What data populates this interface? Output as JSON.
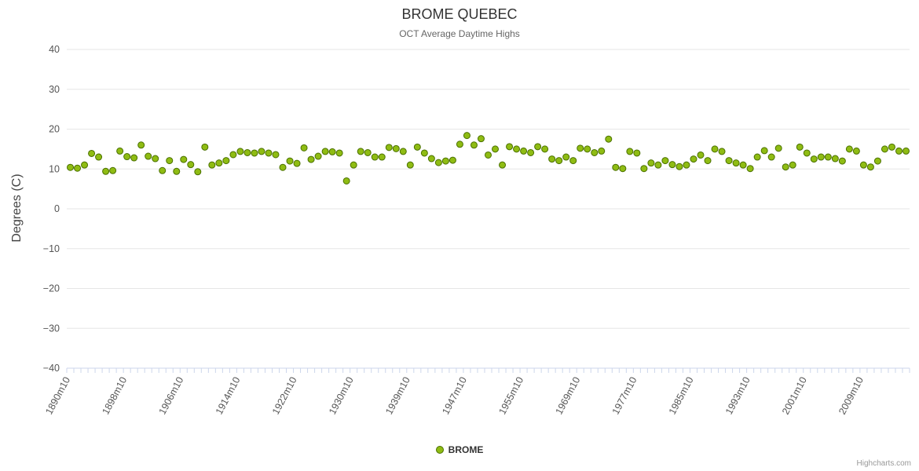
{
  "title": "BROME QUEBEC",
  "subtitle": "OCT Average Daytime Highs",
  "y_axis_title": "Degrees (C)",
  "legend": {
    "label": "BROME"
  },
  "credits": "Highcharts.com",
  "colors": {
    "marker_fill": "#8fbc13",
    "marker_stroke": "#4a7000",
    "grid": "#e6e6e6",
    "axis_line": "#ccd6eb",
    "tick": "#ccd6eb",
    "y_label": "#555555",
    "x_label": "#555555"
  },
  "chart_data": {
    "type": "scatter",
    "title": "BROME QUEBEC",
    "subtitle": "OCT Average Daytime Highs",
    "xlabel": "",
    "ylabel": "Degrees (C)",
    "ylim": [
      -40,
      40
    ],
    "y_ticks": [
      -40,
      -30,
      -20,
      -10,
      0,
      10,
      20,
      30,
      40
    ],
    "grid": true,
    "legend_position": "bottom",
    "x_tick_labels": [
      "1890m10",
      "1898m10",
      "1906m10",
      "1914m10",
      "1922m10",
      "1930m10",
      "1939m10",
      "1947m10",
      "1955m10",
      "1969m10",
      "1977m10",
      "1985m10",
      "1993m10",
      "2001m10",
      "2009m10"
    ],
    "x_tick_indices": [
      0,
      8,
      16,
      24,
      32,
      40,
      48,
      56,
      64,
      72,
      80,
      88,
      96,
      104,
      112
    ],
    "categories": [
      "1890m10",
      "1891m10",
      "1892m10",
      "1893m10",
      "1894m10",
      "1895m10",
      "1896m10",
      "1897m10",
      "1898m10",
      "1899m10",
      "1900m10",
      "1901m10",
      "1902m10",
      "1903m10",
      "1904m10",
      "1905m10",
      "1906m10",
      "1907m10",
      "1908m10",
      "1909m10",
      "1910m10",
      "1911m10",
      "1912m10",
      "1913m10",
      "1914m10",
      "1915m10",
      "1916m10",
      "1917m10",
      "1918m10",
      "1919m10",
      "1920m10",
      "1921m10",
      "1922m10",
      "1923m10",
      "1924m10",
      "1925m10",
      "1926m10",
      "1927m10",
      "1928m10",
      "1929m10",
      "1930m10",
      "1931m10",
      "1932m10",
      "1933m10",
      "1934m10",
      "1935m10",
      "1936m10",
      "1938m10",
      "1939m10",
      "1940m10",
      "1941m10",
      "1942m10",
      "1943m10",
      "1944m10",
      "1945m10",
      "1946m10",
      "1947m10",
      "1948m10",
      "1949m10",
      "1950m10",
      "1951m10",
      "1952m10",
      "1953m10",
      "1954m10",
      "1955m10",
      "1957m10",
      "1959m10",
      "1961m10",
      "1963m10",
      "1965m10",
      "1967m10",
      "1968m10",
      "1969m10",
      "1970m10",
      "1971m10",
      "1972m10",
      "1973m10",
      "1974m10",
      "1975m10",
      "1976m10",
      "1977m10",
      "1978m10",
      "1979m10",
      "1980m10",
      "1981m10",
      "1982m10",
      "1983m10",
      "1984m10",
      "1985m10",
      "1986m10",
      "1987m10",
      "1988m10",
      "1989m10",
      "1990m10",
      "1991m10",
      "1992m10",
      "1993m10",
      "1994m10",
      "1995m10",
      "1996m10",
      "1997m10",
      "1998m10",
      "1999m10",
      "2000m10",
      "2001m10",
      "2002m10",
      "2003m10",
      "2004m10",
      "2005m10",
      "2006m10",
      "2007m10",
      "2008m10",
      "2009m10",
      "2010m10",
      "2011m10",
      "2012m10",
      "2013m10",
      "2014m10",
      "2015m10"
    ],
    "series": [
      {
        "name": "BROME",
        "values": [
          10.4,
          10.2,
          11.0,
          13.9,
          13.0,
          9.4,
          9.6,
          14.5,
          13.1,
          12.8,
          16.0,
          13.2,
          12.6,
          9.6,
          12.1,
          9.4,
          12.4,
          11.1,
          9.3,
          15.5,
          11.0,
          11.5,
          12.1,
          13.6,
          14.4,
          14.1,
          14.0,
          14.4,
          14.0,
          13.6,
          10.4,
          12.0,
          11.4,
          15.3,
          12.4,
          13.2,
          14.4,
          14.3,
          14.0,
          7.0,
          11.0,
          14.4,
          14.1,
          13.0,
          13.0,
          15.4,
          15.1,
          14.4,
          11.0,
          15.5,
          14.0,
          12.6,
          11.6,
          12.0,
          12.2,
          16.2,
          18.4,
          16.0,
          17.6,
          13.5,
          15.0,
          11.0,
          15.6,
          15.0,
          14.5,
          14.1,
          15.6,
          15.0,
          12.5,
          12.1,
          13.0,
          12.1,
          15.2,
          15.0,
          14.1,
          14.5,
          17.5,
          10.4,
          10.1,
          14.4,
          14.0,
          10.1,
          11.5,
          11.0,
          12.1,
          11.1,
          10.6,
          11.0,
          12.5,
          13.5,
          12.1,
          15.0,
          14.4,
          12.1,
          11.5,
          11.0,
          10.1,
          13.0,
          14.6,
          13.0,
          15.2,
          10.5,
          11.0,
          15.5,
          14.0,
          12.5,
          13.0,
          13.0,
          12.6,
          12.0,
          15.0,
          14.5,
          11.0,
          10.5,
          12.0,
          15.0,
          15.5,
          14.5,
          14.5
        ]
      }
    ]
  }
}
